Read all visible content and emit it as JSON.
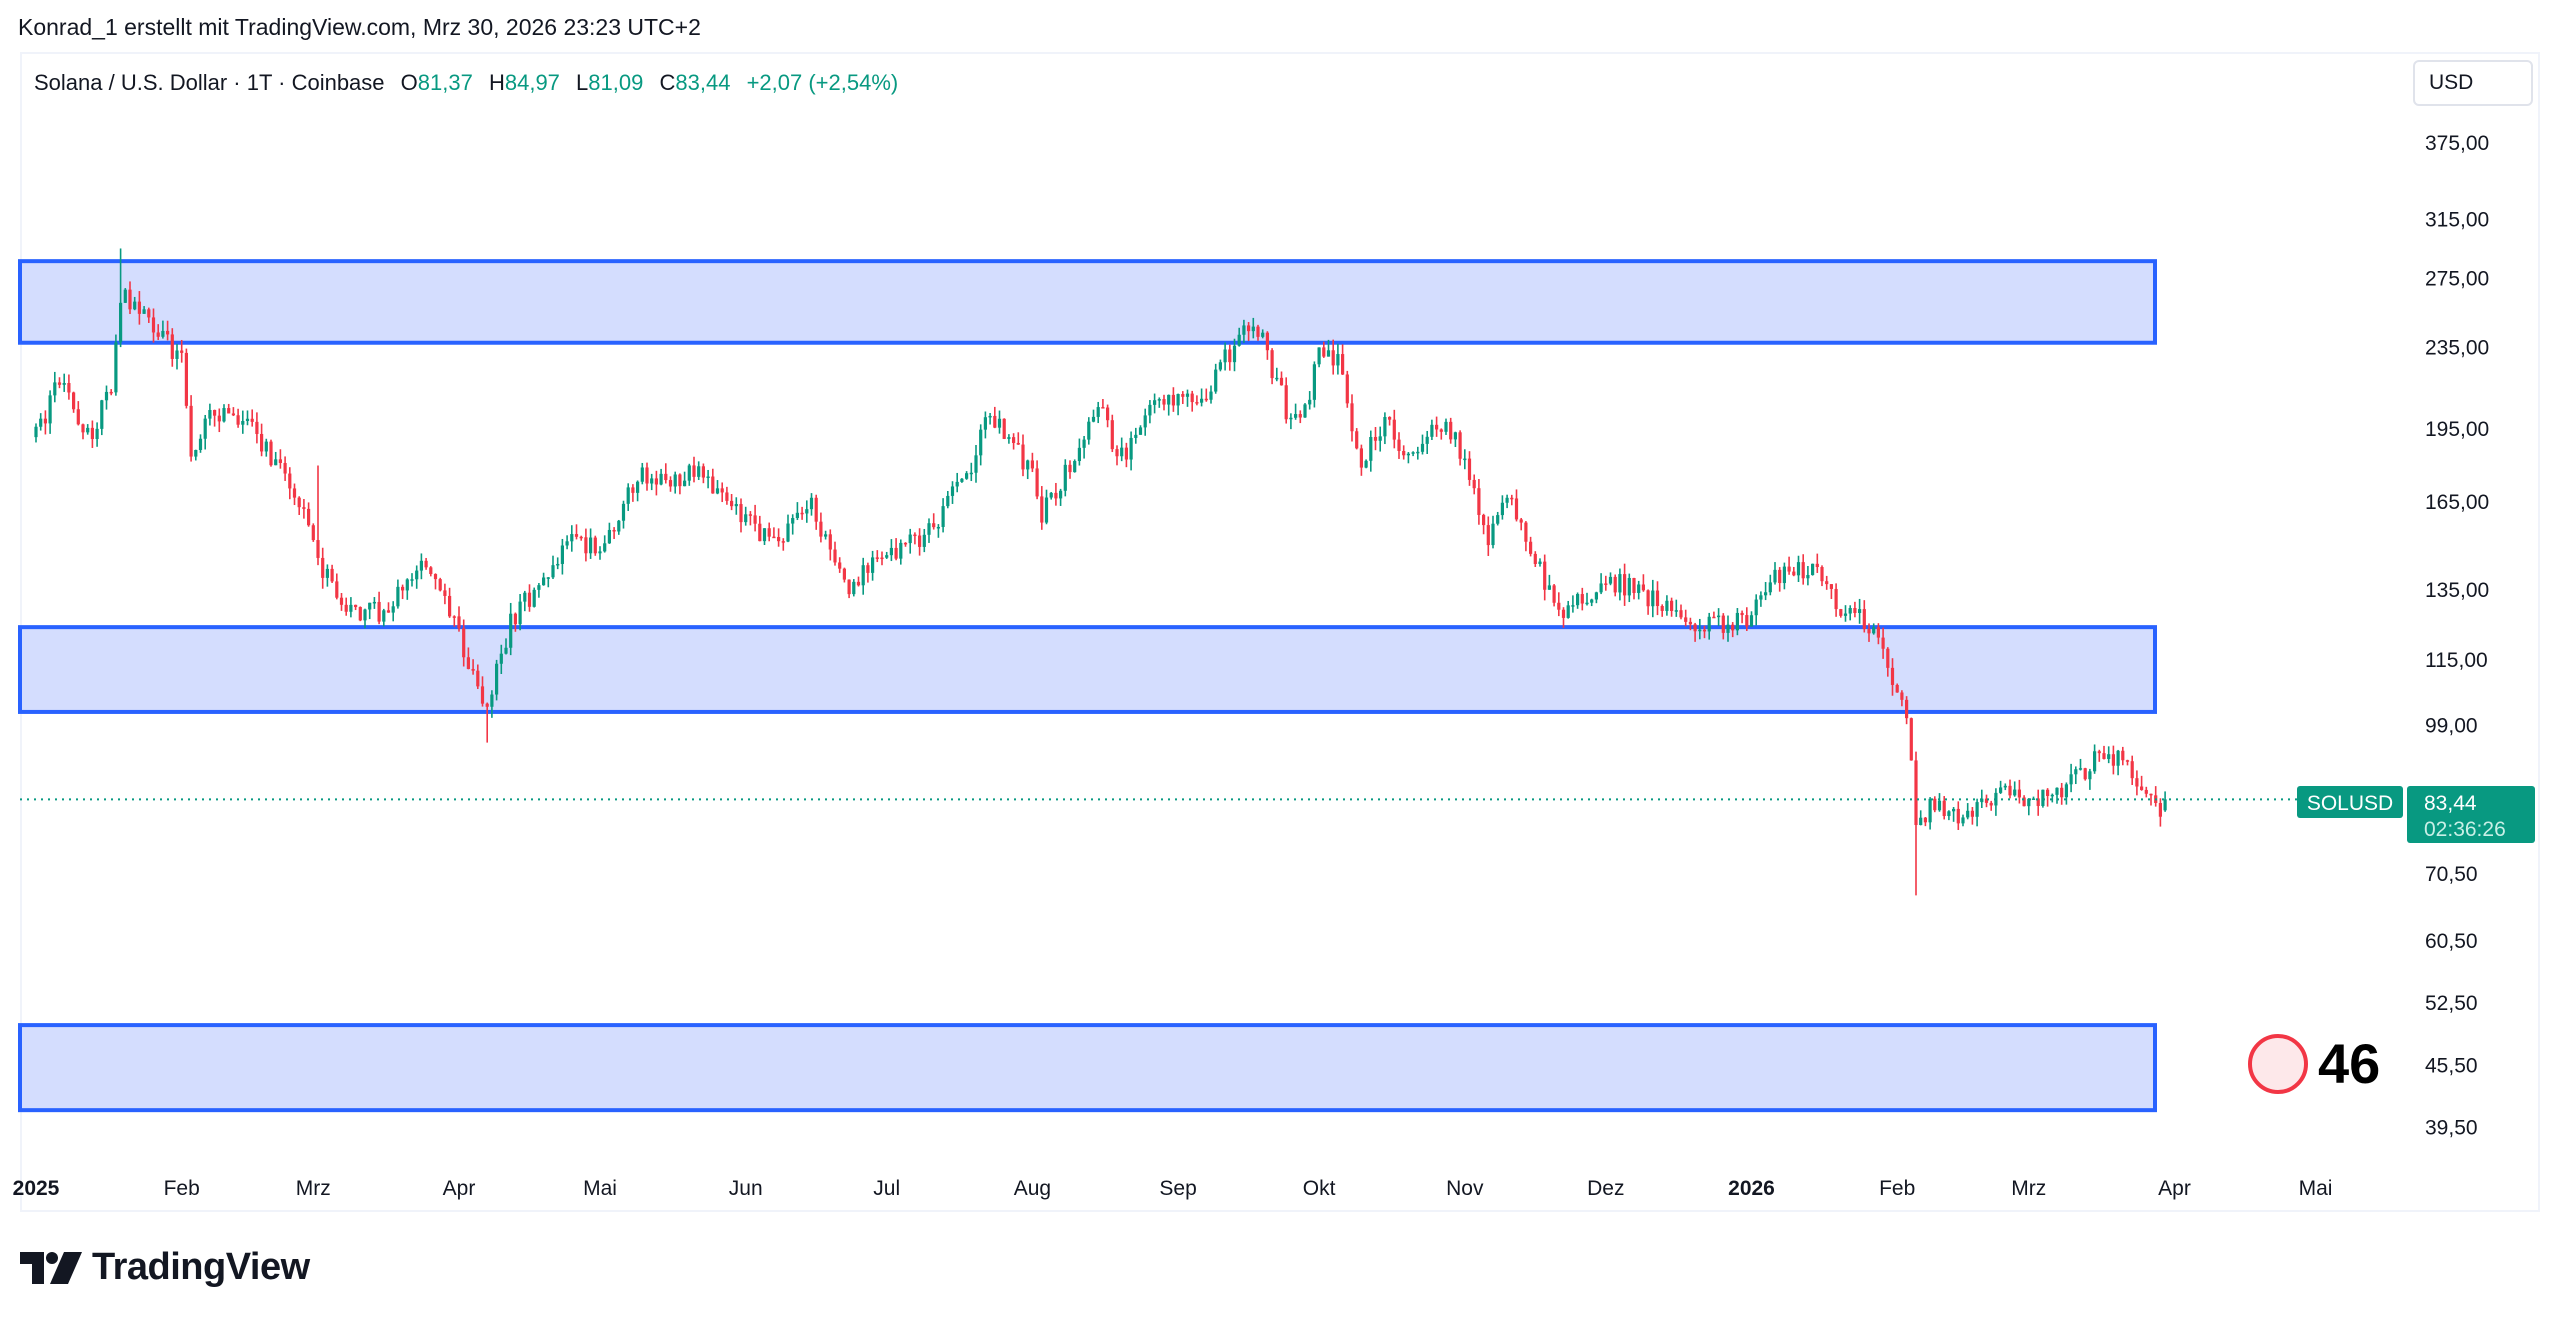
{
  "caption": "Konrad_1 erstellt mit TradingView.com, Mrz 30, 2026 23:23 UTC+2",
  "legend": {
    "symbol": "Solana / U.S. Dollar · 1T · Coinbase",
    "o_label": "O",
    "o": "81,37",
    "h_label": "H",
    "h": "84,97",
    "l_label": "L",
    "l": "81,09",
    "c_label": "C",
    "c": "83,44",
    "change": "+2,07 (+2,54%)"
  },
  "currency_button": "USD",
  "price_label": {
    "symbol": "SOLUSD",
    "price": "83,44",
    "countdown": "02:36:26"
  },
  "annotation": {
    "value": "46",
    "circle_color": "#f23645",
    "circle_fill": "#fde8ea"
  },
  "branding": {
    "logo_text": "TradingView"
  },
  "colors": {
    "up": "#089981",
    "down": "#f23645",
    "zone_border": "#2962ff",
    "zone_fill": "#d4ddfe"
  },
  "chart_data": {
    "type": "candlestick",
    "title": "Solana / U.S. Dollar · 1T · Coinbase",
    "y_scale": "log",
    "ylim": [
      36,
      420
    ],
    "y_ticks": [
      {
        "value": 375,
        "label": "375,00"
      },
      {
        "value": 315,
        "label": "315,00"
      },
      {
        "value": 275,
        "label": "275,00"
      },
      {
        "value": 235,
        "label": "235,00"
      },
      {
        "value": 195,
        "label": "195,00"
      },
      {
        "value": 165,
        "label": "165,00"
      },
      {
        "value": 135,
        "label": "135,00"
      },
      {
        "value": 115,
        "label": "115,00"
      },
      {
        "value": 99,
        "label": "99,00"
      },
      {
        "value": 70.5,
        "label": "70,50"
      },
      {
        "value": 60.5,
        "label": "60,50"
      },
      {
        "value": 52.5,
        "label": "52,50"
      },
      {
        "value": 45.5,
        "label": "45,50"
      },
      {
        "value": 39.5,
        "label": "39,50"
      }
    ],
    "x_ticks": [
      {
        "date": "2025-01-01",
        "label": "2025",
        "bold": true
      },
      {
        "date": "2025-02-01",
        "label": "Feb"
      },
      {
        "date": "2025-03-01",
        "label": "Mrz"
      },
      {
        "date": "2025-04-01",
        "label": "Apr"
      },
      {
        "date": "2025-05-01",
        "label": "Mai"
      },
      {
        "date": "2025-06-01",
        "label": "Jun"
      },
      {
        "date": "2025-07-01",
        "label": "Jul"
      },
      {
        "date": "2025-08-01",
        "label": "Aug"
      },
      {
        "date": "2025-09-01",
        "label": "Sep"
      },
      {
        "date": "2025-10-01",
        "label": "Okt"
      },
      {
        "date": "2025-11-01",
        "label": "Nov"
      },
      {
        "date": "2025-12-01",
        "label": "Dez"
      },
      {
        "date": "2026-01-01",
        "label": "2026",
        "bold": true
      },
      {
        "date": "2026-02-01",
        "label": "Feb"
      },
      {
        "date": "2026-03-01",
        "label": "Mrz"
      },
      {
        "date": "2026-04-01",
        "label": "Apr"
      },
      {
        "date": "2026-05-01",
        "label": "Mai"
      }
    ],
    "last_price": 83.44,
    "last_candle": {
      "date": "2026-03-30",
      "open": 81.37,
      "high": 84.97,
      "low": 81.09,
      "close": 83.44
    },
    "zones": [
      {
        "name": "upper-resistance-zone",
        "top": 285.6,
        "bottom": 237,
        "from": "2025-01-01",
        "to": "2026-03-28"
      },
      {
        "name": "middle-zone",
        "top": 123.7,
        "bottom": 101.9,
        "from": "2025-01-01",
        "to": "2026-03-28"
      },
      {
        "name": "lower-support-zone",
        "top": 49.8,
        "bottom": 41.0,
        "from": "2025-01-01",
        "to": "2026-03-28"
      }
    ],
    "close_path": [
      [
        "2025-01-01",
        191
      ],
      [
        "2025-01-06",
        218
      ],
      [
        "2025-01-12",
        191
      ],
      [
        "2025-01-17",
        212
      ],
      [
        "2025-01-19",
        265
      ],
      [
        "2025-01-25",
        250
      ],
      [
        "2025-02-01",
        228
      ],
      [
        "2025-02-03",
        185
      ],
      [
        "2025-02-08",
        204
      ],
      [
        "2025-02-15",
        196
      ],
      [
        "2025-02-22",
        179
      ],
      [
        "2025-02-25",
        169
      ],
      [
        "2025-03-03",
        140
      ],
      [
        "2025-03-10",
        128
      ],
      [
        "2025-03-15",
        128
      ],
      [
        "2025-03-25",
        143
      ],
      [
        "2025-04-01",
        121
      ],
      [
        "2025-04-07",
        102
      ],
      [
        "2025-04-12",
        126
      ],
      [
        "2025-04-20",
        140
      ],
      [
        "2025-04-25",
        151
      ],
      [
        "2025-05-01",
        148
      ],
      [
        "2025-05-10",
        176
      ],
      [
        "2025-05-15",
        172
      ],
      [
        "2025-05-22",
        176
      ],
      [
        "2025-06-01",
        157
      ],
      [
        "2025-06-08",
        151
      ],
      [
        "2025-06-15",
        163
      ],
      [
        "2025-06-22",
        135
      ],
      [
        "2025-07-01",
        146
      ],
      [
        "2025-07-10",
        154
      ],
      [
        "2025-07-20",
        182
      ],
      [
        "2025-07-22",
        204
      ],
      [
        "2025-08-01",
        176
      ],
      [
        "2025-08-03",
        160
      ],
      [
        "2025-08-12",
        189
      ],
      [
        "2025-08-15",
        204
      ],
      [
        "2025-08-20",
        182
      ],
      [
        "2025-08-28",
        212
      ],
      [
        "2025-09-05",
        204
      ],
      [
        "2025-09-14",
        241
      ],
      [
        "2025-09-18",
        245
      ],
      [
        "2025-09-24",
        204
      ],
      [
        "2025-09-27",
        196
      ],
      [
        "2025-10-01",
        232
      ],
      [
        "2025-10-05",
        228
      ],
      [
        "2025-10-10",
        179
      ],
      [
        "2025-10-15",
        200
      ],
      [
        "2025-10-20",
        182
      ],
      [
        "2025-10-28",
        200
      ],
      [
        "2025-11-03",
        169
      ],
      [
        "2025-11-06",
        151
      ],
      [
        "2025-11-10",
        166
      ],
      [
        "2025-11-18",
        138
      ],
      [
        "2025-11-22",
        128
      ],
      [
        "2025-12-01",
        138
      ],
      [
        "2025-12-08",
        135
      ],
      [
        "2025-12-15",
        128
      ],
      [
        "2025-12-20",
        123
      ],
      [
        "2025-12-31",
        126
      ],
      [
        "2026-01-06",
        138
      ],
      [
        "2026-01-14",
        143
      ],
      [
        "2026-01-20",
        130
      ],
      [
        "2026-01-28",
        123
      ],
      [
        "2026-01-31",
        108
      ],
      [
        "2026-02-03",
        100
      ],
      [
        "2026-02-05",
        80
      ],
      [
        "2026-02-10",
        83
      ],
      [
        "2026-02-15",
        79
      ],
      [
        "2026-02-22",
        85
      ],
      [
        "2026-03-01",
        83
      ],
      [
        "2026-03-10",
        86.5
      ],
      [
        "2026-03-17",
        93
      ],
      [
        "2026-03-22",
        90
      ],
      [
        "2026-03-27",
        83
      ],
      [
        "2026-03-29",
        81.37
      ]
    ],
    "extreme_wicks": [
      {
        "date": "2025-01-19",
        "high": 294
      },
      {
        "date": "2025-03-02",
        "high": 179
      },
      {
        "date": "2025-04-07",
        "low": 95
      },
      {
        "date": "2026-02-05",
        "low": 67
      }
    ]
  }
}
